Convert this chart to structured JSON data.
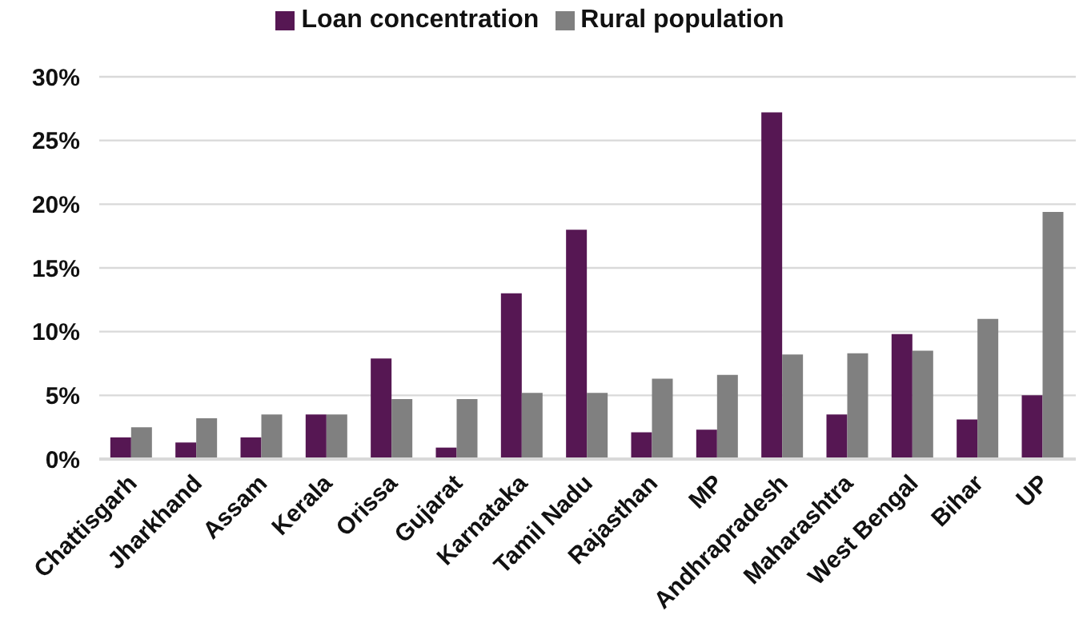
{
  "chart_data": {
    "type": "bar",
    "categories": [
      "Chattisgarh",
      "Jharkhand",
      "Assam",
      "Kerala",
      "Orissa",
      "Gujarat",
      "Karnataka",
      "Tamil Nadu",
      "Rajasthan",
      "MP",
      "Andhrapradesh",
      "Maharashtra",
      "West Bengal",
      "Bihar",
      "UP"
    ],
    "series": [
      {
        "name": "Loan concentration",
        "color": "#561753",
        "values": [
          1.7,
          1.3,
          1.7,
          3.5,
          7.9,
          0.9,
          13.0,
          18.0,
          2.1,
          2.3,
          27.2,
          3.5,
          9.8,
          3.1,
          5.0
        ]
      },
      {
        "name": "Rural population",
        "color": "#808080",
        "values": [
          2.5,
          3.2,
          3.5,
          3.5,
          4.7,
          4.7,
          5.2,
          5.2,
          6.3,
          6.6,
          8.2,
          8.3,
          8.5,
          11.0,
          19.4
        ]
      }
    ],
    "ylim": [
      0,
      30
    ],
    "yticks": [
      {
        "value": 0,
        "label": "0%"
      },
      {
        "value": 5,
        "label": "5%"
      },
      {
        "value": 10,
        "label": "10%"
      },
      {
        "value": 15,
        "label": "15%"
      },
      {
        "value": 20,
        "label": "20%"
      },
      {
        "value": 25,
        "label": "25%"
      },
      {
        "value": 30,
        "label": "30%"
      }
    ],
    "grid": "y",
    "legend": "top"
  }
}
